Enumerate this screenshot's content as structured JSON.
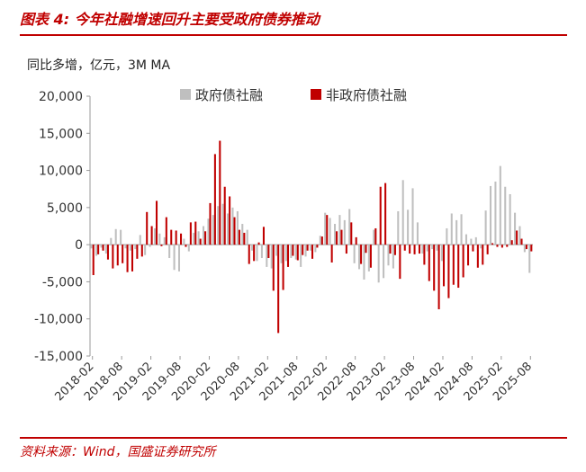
{
  "figure": {
    "label": "图表 4:",
    "title": "今年社融增速回升主要受政府债券推动",
    "unit_note": "同比多增，亿元，3M MA",
    "source": "资料来源：Wind，国盛证券研究所"
  },
  "colors": {
    "gov": "#bfbfbf",
    "nongov": "#c00000",
    "accent": "#c00000"
  },
  "chart_data": {
    "type": "bar",
    "title": "今年社融增速回升主要受政府债券推动",
    "xlabel": "",
    "ylabel": "同比多增，亿元，3M MA",
    "ylim": [
      -15000,
      20000
    ],
    "yticks": [
      -15000,
      -10000,
      -5000,
      0,
      5000,
      10000,
      15000,
      20000
    ],
    "ytick_labels": [
      "-15,000",
      "-10,000",
      "-5,000",
      "0",
      "5,000",
      "10,000",
      "15,000",
      "20,000"
    ],
    "legend_position": "top-right",
    "categories": [
      "2018-02",
      "2018-03",
      "2018-04",
      "2018-05",
      "2018-06",
      "2018-07",
      "2018-08",
      "2018-09",
      "2018-10",
      "2018-11",
      "2018-12",
      "2019-01",
      "2019-02",
      "2019-03",
      "2019-04",
      "2019-05",
      "2019-06",
      "2019-07",
      "2019-08",
      "2019-09",
      "2019-10",
      "2019-11",
      "2019-12",
      "2020-01",
      "2020-02",
      "2020-03",
      "2020-04",
      "2020-05",
      "2020-06",
      "2020-07",
      "2020-08",
      "2020-09",
      "2020-10",
      "2020-11",
      "2020-12",
      "2021-01",
      "2021-02",
      "2021-03",
      "2021-04",
      "2021-05",
      "2021-06",
      "2021-07",
      "2021-08",
      "2021-09",
      "2021-10",
      "2021-11",
      "2021-12",
      "2022-01",
      "2022-02",
      "2022-03",
      "2022-04",
      "2022-05",
      "2022-06",
      "2022-07",
      "2022-08",
      "2022-09",
      "2022-10",
      "2022-11",
      "2022-12",
      "2023-01",
      "2023-02",
      "2023-03",
      "2023-04",
      "2023-05",
      "2023-06",
      "2023-07",
      "2023-08",
      "2023-09",
      "2023-10",
      "2023-11",
      "2023-12",
      "2024-01",
      "2024-02",
      "2024-03",
      "2024-04",
      "2024-05",
      "2024-06",
      "2024-07",
      "2024-08",
      "2024-09",
      "2024-10",
      "2024-11",
      "2024-12",
      "2025-01",
      "2025-02",
      "2025-03",
      "2025-04",
      "2025-05",
      "2025-06",
      "2025-07",
      "2025-08"
    ],
    "tick_labels": [
      "2018-02",
      "2018-08",
      "2019-02",
      "2019-08",
      "2020-02",
      "2020-08",
      "2021-02",
      "2021-08",
      "2022-02",
      "2022-08",
      "2023-02",
      "2023-08",
      "2024-02",
      "2024-08",
      "2025-02",
      "2025-08"
    ],
    "series": [
      {
        "name": "政府债社融",
        "color": "#bfbfbf",
        "values": [
          -500,
          -1500,
          -400,
          -1200,
          900,
          2100,
          2000,
          -500,
          -800,
          -600,
          1300,
          -1400,
          -300,
          2200,
          1500,
          1000,
          -1800,
          -3400,
          -3600,
          800,
          -900,
          1600,
          1800,
          2500,
          3500,
          4000,
          5200,
          5500,
          4200,
          5000,
          4500,
          2800,
          2000,
          -800,
          -2200,
          -1800,
          -3000,
          -3200,
          -1500,
          -2500,
          -2200,
          -1800,
          -2000,
          -3000,
          -1600,
          -800,
          -1000,
          1200,
          4300,
          3600,
          2800,
          4000,
          3300,
          4800,
          -2500,
          -3300,
          -4700,
          -3600,
          2000,
          -5100,
          -4500,
          -2800,
          -3200,
          4500,
          8700,
          4700,
          7600,
          3000,
          -1200,
          -900,
          -600,
          -800,
          -2200,
          2200,
          4200,
          3300,
          4100,
          1400,
          800,
          1000,
          -500,
          4600,
          7900,
          8500,
          10600,
          7800,
          6800,
          4300,
          2500,
          -1000,
          -3800
        ]
      },
      {
        "name": "非政府债社融",
        "color": "#c00000",
        "values": [
          -4100,
          -1300,
          -800,
          -2000,
          -3200,
          -2800,
          -2500,
          -3700,
          -3600,
          -1900,
          -1600,
          4400,
          2500,
          5900,
          -200,
          3700,
          2000,
          1900,
          1500,
          -300,
          3000,
          3100,
          800,
          1800,
          5600,
          12200,
          14000,
          7800,
          6500,
          3700,
          2000,
          1600,
          -2600,
          -2200,
          300,
          2400,
          -1800,
          -6200,
          -11900,
          -6100,
          -3000,
          -1500,
          -2100,
          -1400,
          -800,
          -1900,
          -400,
          1100,
          4000,
          -2400,
          1800,
          2000,
          -1200,
          3000,
          1000,
          -2600,
          -1100,
          -3100,
          2200,
          7800,
          8300,
          -1200,
          -1400,
          -4600,
          -800,
          -1200,
          -1300,
          -1200,
          -2700,
          -4900,
          -6200,
          -8700,
          -5600,
          -7200,
          -5400,
          -5800,
          -4400,
          -2800,
          -900,
          -3100,
          -2700,
          -1300,
          200,
          -300,
          -400,
          -300,
          600,
          1900,
          800,
          -600,
          -900
        ]
      }
    ]
  }
}
